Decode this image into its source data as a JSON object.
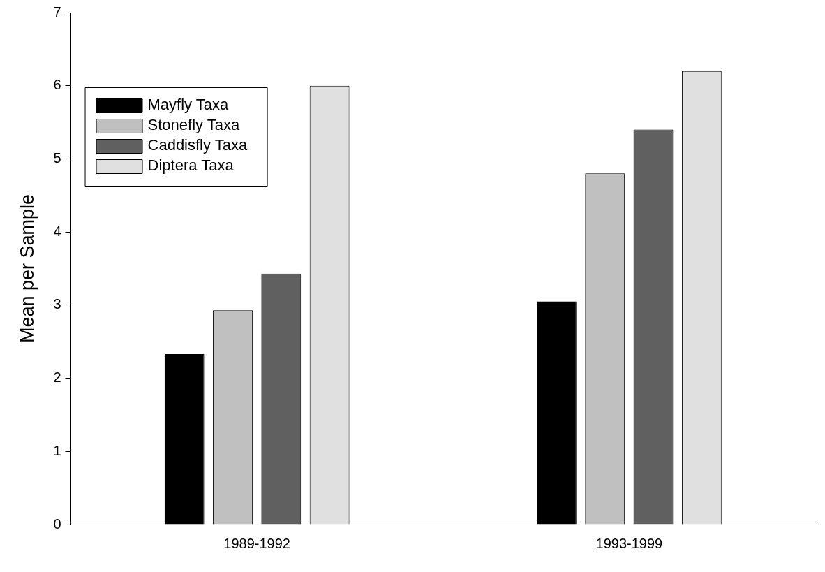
{
  "chart_data": {
    "type": "bar",
    "ylabel": "Mean per Sample",
    "categories": [
      "1989-1992",
      "1993-1999"
    ],
    "series": [
      {
        "name": "Mayfly Taxa",
        "color": "#000000",
        "values": [
          2.33,
          3.05
        ]
      },
      {
        "name": "Stonefly Taxa",
        "color": "#c0c0c0",
        "values": [
          2.93,
          4.8
        ]
      },
      {
        "name": "Caddisfly Taxa",
        "color": "#606060",
        "values": [
          3.43,
          5.4
        ]
      },
      {
        "name": "Diptera Taxa",
        "color": "#e0e0e0",
        "values": [
          6.0,
          6.2
        ]
      }
    ],
    "ylim": [
      0,
      7
    ],
    "yticks": [
      0,
      1,
      2,
      3,
      4,
      5,
      6,
      7
    ],
    "grid": false,
    "legend": "top left"
  }
}
